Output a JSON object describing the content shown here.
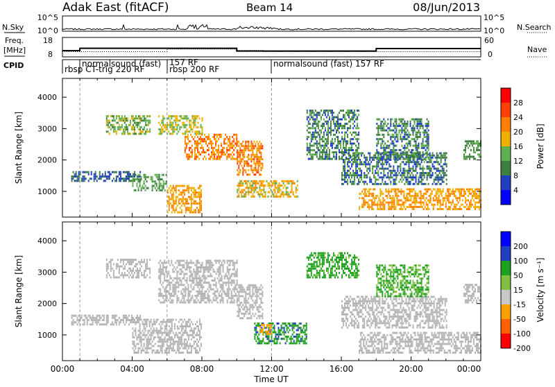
{
  "header": {
    "station": "Adak East (fitACF)",
    "beam": "Beam 14",
    "date": "08/Jun/2013"
  },
  "noise_panel": {
    "left_label": "N.Sky",
    "right_label": "N.Search",
    "left_ticks": [
      "10^5",
      "10^0"
    ],
    "right_ticks": [
      "10^5",
      "10^0"
    ]
  },
  "freq_panel": {
    "left_label_top": "Freq.",
    "left_label_bottom": "[MHz]",
    "right_label": "Nave",
    "left_ticks": [
      "18",
      "8"
    ],
    "right_ticks": [
      "60",
      "0"
    ],
    "frequency_steps": [
      {
        "from_hour": 0.0,
        "to_hour": 1.0,
        "value_mhz": 11.2
      },
      {
        "from_hour": 1.0,
        "to_hour": 10.0,
        "value_mhz": 12.4
      },
      {
        "from_hour": 10.0,
        "to_hour": 18.0,
        "value_mhz": 11.0
      },
      {
        "from_hour": 18.0,
        "to_hour": 24.0,
        "value_mhz": 12.3
      }
    ],
    "nave_steps": [
      {
        "from_hour": 0.0,
        "to_hour": 6.0,
        "value": 16
      },
      {
        "from_hour": 6.0,
        "to_hour": 10.0,
        "value": 24
      },
      {
        "from_hour": 10.0,
        "to_hour": 11.5,
        "value": 20
      },
      {
        "from_hour": 11.5,
        "to_hour": 24.0,
        "value": 16
      }
    ]
  },
  "cpid_panel": {
    "label": "CPID",
    "programs": [
      {
        "line1": "rbsp CT-trig 220 RF",
        "line2": "",
        "start_hour": 0.0
      },
      {
        "line1": "normalsound (fast)",
        "line2": "",
        "start_hour": 1.0
      },
      {
        "line1": "157 RF",
        "line2": "rbsp 200 RF",
        "start_hour": 6.0
      },
      {
        "line1": "normalsound (fast) 157 RF",
        "line2": "",
        "start_hour": 12.0
      }
    ]
  },
  "power_panel": {
    "ylabel": "Slant Range [km]",
    "yticks": [
      1000,
      2000,
      3000,
      4000
    ],
    "colorbar_label": "Power [dB]",
    "colorbar_ticks": [
      "28",
      "24",
      "20",
      "16",
      "12",
      "8",
      "4"
    ]
  },
  "velocity_panel": {
    "ylabel": "Slant Range [km]",
    "yticks": [
      1000,
      2000,
      3000,
      4000
    ],
    "colorbar_label": "Velocity [m s⁻¹]",
    "colorbar_ticks": [
      "200",
      "100",
      "50",
      "15",
      "-15",
      "-50",
      "-100",
      "-200"
    ]
  },
  "x_axis": {
    "label": "Time UT",
    "ticks": [
      "00:00",
      "04:00",
      "08:00",
      "12:00",
      "16:00",
      "20:00",
      "00:00"
    ]
  },
  "colors": {
    "power_scale": [
      "#0000ff",
      "#1f3fbf",
      "#3f7f3f",
      "#5fb04f",
      "#f0b000",
      "#ff8000",
      "#ff4000",
      "#ff0000"
    ],
    "velocity_scale": [
      "#ff0000",
      "#ff6000",
      "#ffa000",
      "#c8c8c8",
      "#80c040",
      "#20a020",
      "#2040c0",
      "#0000ff"
    ],
    "ground_scatter": "#b4b4b4"
  },
  "chart_data": {
    "type": "heatmap",
    "x_unit": "hours UT",
    "xlim": [
      0,
      24
    ],
    "ylim_km": [
      180,
      4600
    ],
    "power_db_range": [
      0,
      30
    ],
    "velocity_range": [
      -250,
      250
    ],
    "power_echo_regions": [
      {
        "t0": 0.5,
        "t1": 4.5,
        "r0": 1300,
        "r1": 1600,
        "power_db": 8
      },
      {
        "t0": 2.5,
        "t1": 5.0,
        "r0": 2800,
        "r1": 3400,
        "power_db": 14
      },
      {
        "t0": 4.0,
        "t1": 6.0,
        "r0": 1000,
        "r1": 1500,
        "power_db": 12
      },
      {
        "t0": 5.5,
        "t1": 8.0,
        "r0": 2800,
        "r1": 3400,
        "power_db": 16
      },
      {
        "t0": 6.0,
        "t1": 8.0,
        "r0": 300,
        "r1": 1200,
        "power_db": 20
      },
      {
        "t0": 7.0,
        "t1": 10.0,
        "r0": 2000,
        "r1": 2800,
        "power_db": 22
      },
      {
        "t0": 10.0,
        "t1": 11.5,
        "r0": 1500,
        "r1": 2600,
        "power_db": 22
      },
      {
        "t0": 10.0,
        "t1": 13.5,
        "r0": 800,
        "r1": 1300,
        "power_db": 18
      },
      {
        "t0": 14.0,
        "t1": 17.0,
        "r0": 2000,
        "r1": 3600,
        "power_db": 10
      },
      {
        "t0": 16.0,
        "t1": 22.0,
        "r0": 1200,
        "r1": 2200,
        "power_db": 9
      },
      {
        "t0": 17.0,
        "t1": 24.0,
        "r0": 400,
        "r1": 1100,
        "power_db": 20
      },
      {
        "t0": 18.0,
        "t1": 21.0,
        "r0": 2000,
        "r1": 3300,
        "power_db": 10
      },
      {
        "t0": 23.0,
        "t1": 24.0,
        "r0": 2000,
        "r1": 2600,
        "power_db": 12
      }
    ],
    "velocity_echo_regions": [
      {
        "t0": 0.5,
        "t1": 4.5,
        "r0": 1300,
        "r1": 1600,
        "velocity": 0,
        "ground_scatter": true
      },
      {
        "t0": 2.5,
        "t1": 5.0,
        "r0": 2800,
        "r1": 3400,
        "velocity": 0,
        "ground_scatter": true
      },
      {
        "t0": 4.0,
        "t1": 8.0,
        "r0": 400,
        "r1": 1500,
        "velocity": 0,
        "ground_scatter": true
      },
      {
        "t0": 5.5,
        "t1": 10.0,
        "r0": 2000,
        "r1": 3400,
        "velocity": 0,
        "ground_scatter": true
      },
      {
        "t0": 10.0,
        "t1": 11.5,
        "r0": 1500,
        "r1": 2600,
        "velocity": 0,
        "ground_scatter": true
      },
      {
        "t0": 11.0,
        "t1": 14.0,
        "r0": 700,
        "r1": 1400,
        "velocity": 40,
        "ground_scatter": false
      },
      {
        "t0": 11.3,
        "t1": 12.0,
        "r0": 1000,
        "r1": 1300,
        "velocity": -80,
        "ground_scatter": false
      },
      {
        "t0": 14.0,
        "t1": 17.0,
        "r0": 2800,
        "r1": 3600,
        "velocity": 30,
        "ground_scatter": false
      },
      {
        "t0": 16.0,
        "t1": 22.0,
        "r0": 1200,
        "r1": 2200,
        "velocity": 0,
        "ground_scatter": true
      },
      {
        "t0": 17.0,
        "t1": 24.0,
        "r0": 400,
        "r1": 1100,
        "velocity": 0,
        "ground_scatter": true
      },
      {
        "t0": 18.0,
        "t1": 21.0,
        "r0": 2200,
        "r1": 3200,
        "velocity": 20,
        "ground_scatter": false
      },
      {
        "t0": 23.0,
        "t1": 24.0,
        "r0": 2000,
        "r1": 2600,
        "velocity": 0,
        "ground_scatter": true
      }
    ]
  }
}
